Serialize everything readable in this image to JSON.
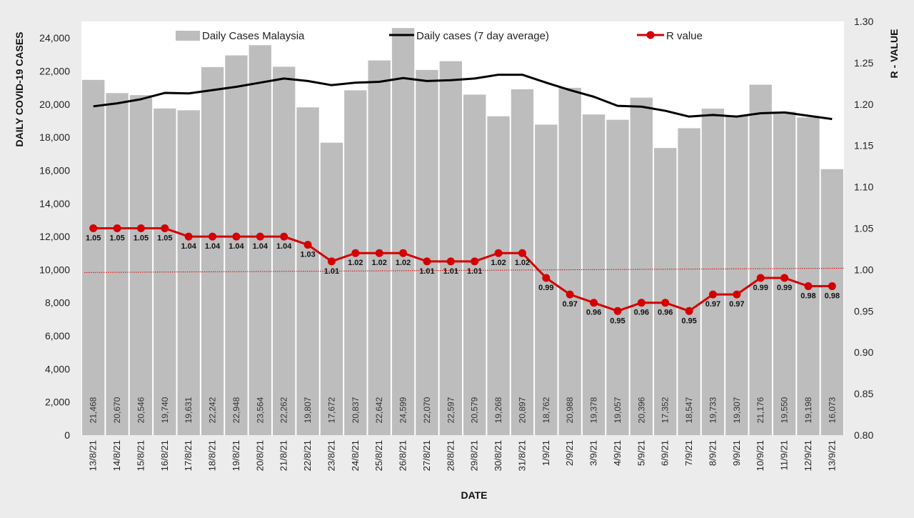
{
  "chart_data": {
    "type": "bar",
    "xlabel": "DATE",
    "ylabel": "DAILY COVID-19 CASES",
    "y2label": "R - VALUE",
    "ylim": [
      0,
      25000
    ],
    "y2lim": [
      0.8,
      1.3
    ],
    "y_ticks": [
      "0",
      "2,000",
      "4,000",
      "6,000",
      "8,000",
      "10,000",
      "12,000",
      "14,000",
      "16,000",
      "18,000",
      "20,000",
      "22,000",
      "24,000"
    ],
    "y2_ticks": [
      "0.80",
      "0.85",
      "0.90",
      "0.95",
      "1.00",
      "1.05",
      "1.10",
      "1.15",
      "1.20",
      "1.25",
      "1.30"
    ],
    "reference_line": 1.0,
    "categories": [
      "13/8/21",
      "14/8/21",
      "15/8/21",
      "16/8/21",
      "17/8/21",
      "18/8/21",
      "19/8/21",
      "20/8/21",
      "21/8/21",
      "22/8/21",
      "23/8/21",
      "24/8/21",
      "25/8/21",
      "26/8/21",
      "27/8/21",
      "28/8/21",
      "29/8/21",
      "30/8/21",
      "31/8/21",
      "1/9/21",
      "2/9/21",
      "3/9/21",
      "4/9/21",
      "5/9/21",
      "6/9/21",
      "7/9/21",
      "8/9/21",
      "9/9/21",
      "10/9/21",
      "11/9/21",
      "12/9/21",
      "13/9/21"
    ],
    "legend": [
      "Daily Cases Malaysia",
      "Daily cases (7 day average)",
      "R value"
    ],
    "series": [
      {
        "name": "Daily Cases Malaysia",
        "type": "bar",
        "color": "#bdbdbd",
        "values": [
          21468,
          20670,
          20546,
          19740,
          19631,
          22242,
          22948,
          23564,
          22262,
          19807,
          17672,
          20837,
          22642,
          24599,
          22070,
          22597,
          20579,
          19268,
          20897,
          18762,
          20988,
          19378,
          19057,
          20396,
          17352,
          18547,
          19733,
          19307,
          21176,
          19550,
          19198,
          16073
        ],
        "labels": [
          "21,468",
          "20,670",
          "20,546",
          "19,740",
          "19,631",
          "22,242",
          "22,948",
          "23,564",
          "22,262",
          "19,807",
          "17,672",
          "20,837",
          "22,642",
          "24,599",
          "22,070",
          "22,597",
          "20,579",
          "19,268",
          "20,897",
          "18,762",
          "20,988",
          "19,378",
          "19,057",
          "20,396",
          "17,352",
          "18,547",
          "19,733",
          "19,307",
          "21,176",
          "19,550",
          "19,198",
          "16,073"
        ]
      },
      {
        "name": "Daily cases (7 day average)",
        "type": "line",
        "color": "#000000",
        "values": [
          19870,
          20050,
          20300,
          20680,
          20650,
          20850,
          21050,
          21300,
          21550,
          21400,
          21150,
          21300,
          21350,
          21580,
          21400,
          21450,
          21550,
          21780,
          21780,
          21300,
          20850,
          20450,
          19900,
          19850,
          19600,
          19250,
          19350,
          19250,
          19450,
          19500,
          19300,
          19100
        ]
      },
      {
        "name": "R value",
        "type": "line",
        "axis": "right",
        "color": "#d40000",
        "values": [
          1.05,
          1.05,
          1.05,
          1.05,
          1.04,
          1.04,
          1.04,
          1.04,
          1.04,
          1.03,
          1.01,
          1.02,
          1.02,
          1.02,
          1.01,
          1.01,
          1.01,
          1.02,
          1.02,
          0.99,
          0.97,
          0.96,
          0.95,
          0.96,
          0.96,
          0.95,
          0.97,
          0.97,
          0.99,
          0.99,
          0.98,
          0.98
        ],
        "labels": [
          "1.05",
          "1.05",
          "1.05",
          "1.05",
          "1.04",
          "1.04",
          "1.04",
          "1.04",
          "1.04",
          "1.03",
          "1.01",
          "1.02",
          "1.02",
          "1.02",
          "1.01",
          "1.01",
          "1.01",
          "1.02",
          "1.02",
          "0.99",
          "0.97",
          "0.96",
          "0.95",
          "0.96",
          "0.96",
          "0.95",
          "0.97",
          "0.97",
          "0.99",
          "0.99",
          "0.98",
          "0.98"
        ]
      }
    ]
  }
}
